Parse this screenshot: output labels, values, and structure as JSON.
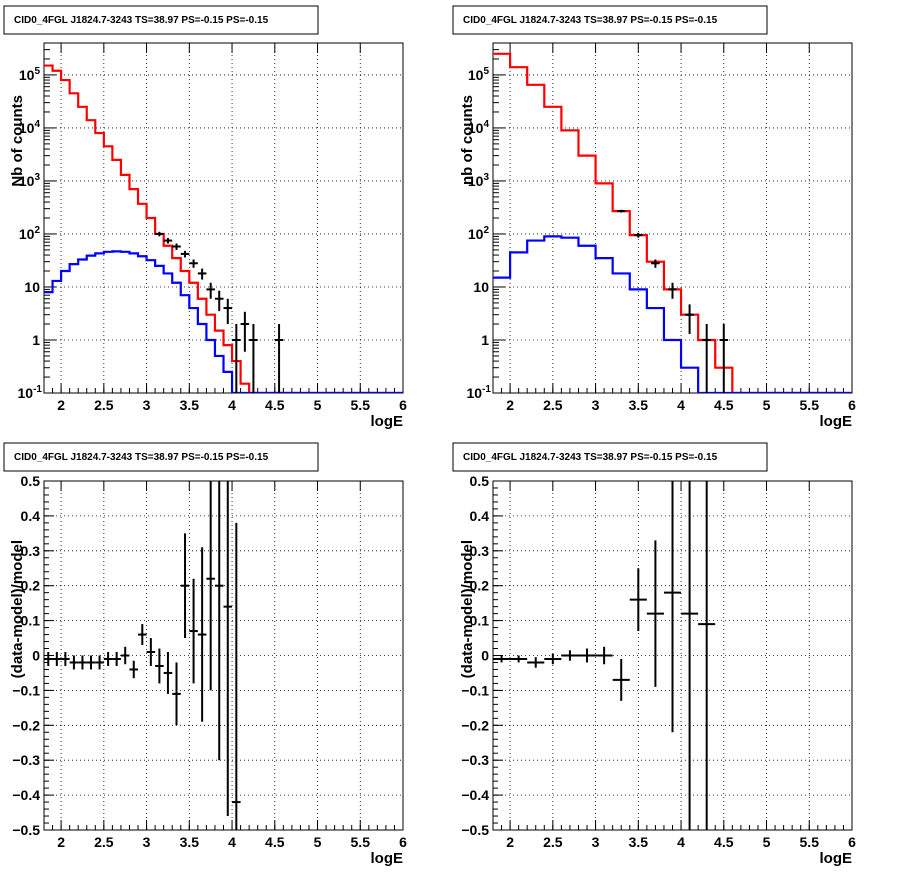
{
  "colors": {
    "data": "#000000",
    "model_total": "#ff0000",
    "model_source": "#0000ff",
    "grid": "#000000"
  },
  "chart_data": [
    {
      "type": "line",
      "title": "CID0_4FGL J1824.7-3243 TS=38.97 PS=-0.15 PS=-0.15",
      "xlabel": "logE",
      "ylabel": "Nb of counts",
      "yscale": "log",
      "xlim": [
        1.8,
        6.0
      ],
      "ylim": [
        0.1,
        400000
      ],
      "grid": true,
      "x_tick_labels": [
        "2",
        "2.5",
        "3",
        "3.5",
        "4",
        "4.5",
        "5",
        "5.5",
        "6"
      ],
      "y_tick_labels": [
        "10^-1",
        "1",
        "10",
        "10^2",
        "10^3",
        "10^4",
        "10^5"
      ],
      "bin_edges": [
        1.8,
        1.9,
        2.0,
        2.1,
        2.2,
        2.3,
        2.4,
        2.5,
        2.6,
        2.7,
        2.8,
        2.9,
        3.0,
        3.1,
        3.2,
        3.3,
        3.4,
        3.5,
        3.6,
        3.7,
        3.8,
        3.9,
        4.0,
        4.1,
        4.2,
        4.3,
        4.4,
        4.5,
        4.6,
        4.7,
        4.8,
        4.9,
        5.0,
        5.1,
        5.2,
        5.3,
        5.4,
        5.5,
        5.6,
        5.7,
        5.8,
        5.9,
        6.0
      ],
      "series": [
        {
          "key": "model_total",
          "values": [
            150000,
            120000,
            80000,
            45000,
            25000,
            14000,
            8000,
            4500,
            2500,
            1300,
            700,
            370,
            200,
            100,
            60,
            35,
            20,
            12,
            6,
            3,
            1.5,
            0.8,
            0.4,
            0.15,
            0.1,
            0.1,
            0.1,
            0.1,
            0.1,
            0.1,
            0.1,
            0.1,
            0.1,
            0.1,
            0.1,
            0.1,
            0.1,
            0.1,
            0.1,
            0.1,
            0.1,
            0.1
          ]
        },
        {
          "key": "model_source",
          "values": [
            8,
            13,
            20,
            27,
            33,
            39,
            43,
            46,
            47,
            46,
            43,
            38,
            32,
            25,
            18,
            12,
            7,
            4,
            2,
            1,
            0.5,
            0.25,
            0.1,
            0.1,
            0.1,
            0.1,
            0.1,
            0.1,
            0.1,
            0.1,
            0.1,
            0.1,
            0.1,
            0.1,
            0.1,
            0.1,
            0.1,
            0.1,
            0.1,
            0.1,
            0.1,
            0.1
          ]
        }
      ],
      "data_points": [
        {
          "x": 3.15,
          "y": 100,
          "yerr": 10
        },
        {
          "x": 3.25,
          "y": 75,
          "yerr": 9
        },
        {
          "x": 3.35,
          "y": 58,
          "yerr": 8
        },
        {
          "x": 3.45,
          "y": 42,
          "yerr": 6
        },
        {
          "x": 3.55,
          "y": 28,
          "yerr": 5
        },
        {
          "x": 3.65,
          "y": 18,
          "yerr": 4.2
        },
        {
          "x": 3.75,
          "y": 9,
          "yerr": 3
        },
        {
          "x": 3.85,
          "y": 6,
          "yerr": 2.5
        },
        {
          "x": 3.95,
          "y": 4,
          "yerr": 2
        },
        {
          "x": 4.05,
          "y": 1,
          "yerr": 1
        },
        {
          "x": 4.15,
          "y": 2,
          "yerr": 1.4
        },
        {
          "x": 4.25,
          "y": 1,
          "yerr": 1
        },
        {
          "x": 4.55,
          "y": 1,
          "yerr": 1
        }
      ]
    },
    {
      "type": "line",
      "title": "CID0_4FGL J1824.7-3243 TS=38.97 PS=-0.15 PS=-0.15",
      "xlabel": "logE",
      "ylabel": "nb of counts",
      "yscale": "log",
      "xlim": [
        1.8,
        6.0
      ],
      "ylim": [
        0.1,
        400000
      ],
      "grid": true,
      "x_tick_labels": [
        "2",
        "2.5",
        "3",
        "3.5",
        "4",
        "4.5",
        "5",
        "5.5",
        "6"
      ],
      "y_tick_labels": [
        "10^-1",
        "1",
        "10",
        "10^2",
        "10^3",
        "10^4",
        "10^5"
      ],
      "bin_edges": [
        1.8,
        2.0,
        2.2,
        2.4,
        2.6,
        2.8,
        3.0,
        3.2,
        3.4,
        3.6,
        3.8,
        4.0,
        4.2,
        4.4,
        4.6,
        4.8,
        5.0,
        5.2,
        5.4,
        5.6,
        5.8,
        6.0
      ],
      "series": [
        {
          "key": "model_total",
          "values": [
            250000,
            140000,
            65000,
            25000,
            9000,
            3000,
            900,
            270,
            95,
            30,
            9,
            3,
            1,
            0.3,
            0.1,
            0.1,
            0.1,
            0.1,
            0.1,
            0.1,
            0.1
          ]
        },
        {
          "key": "model_source",
          "values": [
            15,
            45,
            75,
            90,
            85,
            60,
            35,
            18,
            9,
            4,
            1,
            0.3,
            0.1,
            0.1,
            0.1,
            0.1,
            0.1,
            0.1,
            0.1,
            0.1,
            0.1
          ]
        }
      ],
      "data_points": [
        {
          "x": 3.3,
          "y": 270,
          "yerr": 16
        },
        {
          "x": 3.5,
          "y": 95,
          "yerr": 10
        },
        {
          "x": 3.7,
          "y": 28,
          "yerr": 5
        },
        {
          "x": 3.9,
          "y": 9,
          "yerr": 3
        },
        {
          "x": 4.1,
          "y": 3,
          "yerr": 1.7
        },
        {
          "x": 4.3,
          "y": 1,
          "yerr": 1
        },
        {
          "x": 4.5,
          "y": 1,
          "yerr": 1
        }
      ]
    },
    {
      "type": "scatter",
      "title": "CID0_4FGL J1824.7-3243 TS=38.97 PS=-0.15 PS=-0.15",
      "xlabel": "logE",
      "ylabel": "(data-model)/model",
      "yscale": "linear",
      "xlim": [
        1.8,
        6.0
      ],
      "ylim": [
        -0.5,
        0.5
      ],
      "grid": true,
      "x_tick_labels": [
        "2",
        "2.5",
        "3",
        "3.5",
        "4",
        "4.5",
        "5",
        "5.5",
        "6"
      ],
      "y_tick_labels": [
        "-0.5",
        "-0.4",
        "-0.3",
        "-0.2",
        "-0.1",
        "0",
        "0.1",
        "0.2",
        "0.3",
        "0.4",
        "0.5"
      ],
      "xerr": 0.05,
      "data_points": [
        {
          "x": 1.85,
          "y": -0.01,
          "yerr": 0.02
        },
        {
          "x": 1.95,
          "y": -0.01,
          "yerr": 0.02
        },
        {
          "x": 2.05,
          "y": -0.01,
          "yerr": 0.02
        },
        {
          "x": 2.15,
          "y": -0.02,
          "yerr": 0.02
        },
        {
          "x": 2.25,
          "y": -0.02,
          "yerr": 0.02
        },
        {
          "x": 2.35,
          "y": -0.02,
          "yerr": 0.02
        },
        {
          "x": 2.45,
          "y": -0.02,
          "yerr": 0.02
        },
        {
          "x": 2.55,
          "y": -0.01,
          "yerr": 0.02
        },
        {
          "x": 2.65,
          "y": -0.01,
          "yerr": 0.02
        },
        {
          "x": 2.75,
          "y": 0.0,
          "yerr": 0.025
        },
        {
          "x": 2.85,
          "y": -0.04,
          "yerr": 0.025
        },
        {
          "x": 2.95,
          "y": 0.06,
          "yerr": 0.03
        },
        {
          "x": 3.05,
          "y": 0.01,
          "yerr": 0.04
        },
        {
          "x": 3.15,
          "y": -0.03,
          "yerr": 0.05
        },
        {
          "x": 3.25,
          "y": -0.05,
          "yerr": 0.06
        },
        {
          "x": 3.35,
          "y": -0.11,
          "yerr": 0.09
        },
        {
          "x": 3.45,
          "y": 0.2,
          "yerr": 0.15
        },
        {
          "x": 3.55,
          "y": 0.07,
          "yerr": 0.15
        },
        {
          "x": 3.65,
          "y": 0.06,
          "yerr": 0.25
        },
        {
          "x": 3.75,
          "y": 0.22,
          "yerr": 0.32
        },
        {
          "x": 3.85,
          "y": 0.2,
          "yerr": 0.5
        },
        {
          "x": 3.95,
          "y": 0.14,
          "yerr": 0.6
        },
        {
          "x": 4.05,
          "y": -0.42,
          "yerr": 0.8
        }
      ]
    },
    {
      "type": "scatter",
      "title": "CID0_4FGL J1824.7-3243 TS=38.97 PS=-0.15 PS=-0.15",
      "xlabel": "logE",
      "ylabel": "(data-model)/model",
      "yscale": "linear",
      "xlim": [
        1.8,
        6.0
      ],
      "ylim": [
        -0.5,
        0.5
      ],
      "grid": true,
      "x_tick_labels": [
        "2",
        "2.5",
        "3",
        "3.5",
        "4",
        "4.5",
        "5",
        "5.5",
        "6"
      ],
      "y_tick_labels": [
        "-0.5",
        "-0.4",
        "-0.3",
        "-0.2",
        "-0.1",
        "0",
        "0.1",
        "0.2",
        "0.3",
        "0.4",
        "0.5"
      ],
      "xerr": 0.1,
      "data_points": [
        {
          "x": 1.9,
          "y": -0.01,
          "yerr": 0.01
        },
        {
          "x": 2.1,
          "y": -0.01,
          "yerr": 0.01
        },
        {
          "x": 2.3,
          "y": -0.02,
          "yerr": 0.015
        },
        {
          "x": 2.5,
          "y": -0.01,
          "yerr": 0.015
        },
        {
          "x": 2.7,
          "y": 0.0,
          "yerr": 0.015
        },
        {
          "x": 2.9,
          "y": 0.0,
          "yerr": 0.02
        },
        {
          "x": 3.1,
          "y": 0.0,
          "yerr": 0.025
        },
        {
          "x": 3.3,
          "y": -0.07,
          "yerr": 0.06
        },
        {
          "x": 3.5,
          "y": 0.16,
          "yerr": 0.09
        },
        {
          "x": 3.7,
          "y": 0.12,
          "yerr": 0.21
        },
        {
          "x": 3.9,
          "y": 0.18,
          "yerr": 0.4
        },
        {
          "x": 4.1,
          "y": 0.12,
          "yerr": 0.7
        },
        {
          "x": 4.3,
          "y": 0.09,
          "yerr": 0.9
        }
      ]
    }
  ]
}
